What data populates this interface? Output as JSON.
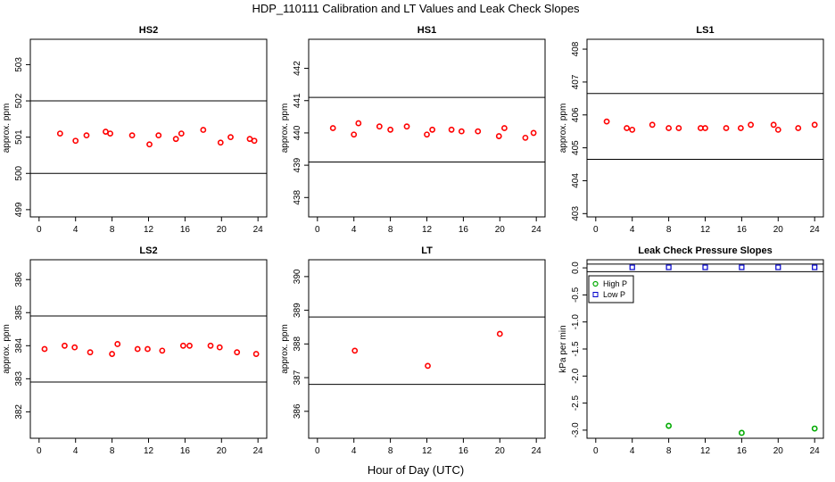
{
  "figure": {
    "title": "HDP_110111  Calibration and LT Values and Leak Check Slopes",
    "xlabel": "Hour of Day (UTC)"
  },
  "chart_data": [
    {
      "type": "scatter",
      "title": "HS2",
      "xlabel": "",
      "ylabel": "approx. ppm",
      "xlim": [
        0,
        24
      ],
      "ylim": [
        498.8,
        503.7
      ],
      "xticks": [
        0,
        4,
        8,
        12,
        16,
        20,
        24
      ],
      "yticks": [
        499,
        500,
        501,
        502,
        503
      ],
      "hlines": [
        500.0,
        502.0
      ],
      "series": [
        {
          "color": "#ff0000",
          "x": [
            2.3,
            4.0,
            5.2,
            7.3,
            7.8,
            10.2,
            12.1,
            13.1,
            15.0,
            15.6,
            18.0,
            19.9,
            21.0,
            23.1,
            23.6
          ],
          "y": [
            501.1,
            500.9,
            501.05,
            501.15,
            501.1,
            501.05,
            500.8,
            501.05,
            500.95,
            501.1,
            501.2,
            500.85,
            501.0,
            500.95,
            500.9
          ]
        }
      ]
    },
    {
      "type": "scatter",
      "title": "HS1",
      "xlabel": "",
      "ylabel": "approx. ppm",
      "xlim": [
        0,
        24
      ],
      "ylim": [
        437.4,
        442.9
      ],
      "xticks": [
        0,
        4,
        8,
        12,
        16,
        20,
        24
      ],
      "yticks": [
        438,
        439,
        440,
        441,
        442
      ],
      "hlines": [
        439.1,
        441.1
      ],
      "series": [
        {
          "color": "#ff0000",
          "x": [
            1.7,
            4.0,
            4.5,
            6.8,
            8.0,
            9.8,
            12.0,
            12.6,
            14.7,
            15.8,
            17.6,
            19.9,
            20.5,
            22.8,
            23.7
          ],
          "y": [
            440.15,
            439.95,
            440.3,
            440.2,
            440.1,
            440.2,
            439.95,
            440.1,
            440.1,
            440.05,
            440.05,
            439.9,
            440.15,
            439.85,
            440.0
          ]
        }
      ]
    },
    {
      "type": "scatter",
      "title": "LS1",
      "xlabel": "",
      "ylabel": "approx. ppm",
      "xlim": [
        0,
        24
      ],
      "ylim": [
        402.9,
        408.3
      ],
      "xticks": [
        0,
        4,
        8,
        12,
        16,
        20,
        24
      ],
      "yticks": [
        403,
        404,
        405,
        406,
        407,
        408
      ],
      "hlines": [
        404.65,
        406.65
      ],
      "series": [
        {
          "color": "#ff0000",
          "x": [
            1.2,
            3.4,
            4.0,
            6.2,
            8.0,
            9.1,
            11.5,
            12.0,
            14.3,
            15.9,
            17.0,
            19.5,
            20.0,
            22.2,
            24.0
          ],
          "y": [
            405.8,
            405.6,
            405.55,
            405.7,
            405.6,
            405.6,
            405.6,
            405.6,
            405.6,
            405.6,
            405.7,
            405.7,
            405.55,
            405.6,
            405.7
          ]
        }
      ]
    },
    {
      "type": "scatter",
      "title": "LS2",
      "xlabel": "",
      "ylabel": "approx. ppm",
      "xlim": [
        0,
        24
      ],
      "ylim": [
        381.2,
        386.6
      ],
      "xticks": [
        0,
        4,
        8,
        12,
        16,
        20,
        24
      ],
      "yticks": [
        382,
        383,
        384,
        385,
        386
      ],
      "hlines": [
        382.9,
        384.9
      ],
      "series": [
        {
          "color": "#ff0000",
          "x": [
            0.6,
            2.8,
            3.9,
            5.6,
            8.0,
            8.6,
            10.8,
            11.9,
            13.5,
            15.8,
            16.5,
            18.8,
            19.8,
            21.7,
            23.8
          ],
          "y": [
            383.9,
            384.0,
            383.95,
            383.8,
            383.75,
            384.05,
            383.9,
            383.9,
            383.85,
            384.0,
            384.0,
            384.0,
            383.95,
            383.8,
            383.75
          ]
        }
      ]
    },
    {
      "type": "scatter",
      "title": "LT",
      "xlabel": "",
      "ylabel": "approx. ppm",
      "xlim": [
        0,
        24
      ],
      "ylim": [
        385.2,
        390.5
      ],
      "xticks": [
        0,
        4,
        8,
        12,
        16,
        20,
        24
      ],
      "yticks": [
        386,
        387,
        388,
        389,
        390
      ],
      "hlines": [
        386.8,
        388.8
      ],
      "series": [
        {
          "color": "#ff0000",
          "x": [
            4.1,
            12.1,
            20.0
          ],
          "y": [
            387.8,
            387.35,
            388.3
          ]
        }
      ]
    },
    {
      "type": "scatter",
      "title": "Leak Check Pressure Slopes",
      "xlabel": "",
      "ylabel": "kPa per min",
      "xlim": [
        0,
        24
      ],
      "ylim": [
        -3.15,
        0.15
      ],
      "xticks": [
        0,
        4,
        8,
        12,
        16,
        20,
        24
      ],
      "yticks": [
        0.0,
        -0.5,
        -1.0,
        -1.5,
        -2.0,
        -2.5,
        -3.0
      ],
      "ytick_labels": [
        "0.0",
        "-0.5",
        "-1.0",
        "-1.5",
        "-2.0",
        "-2.5",
        "-3.0"
      ],
      "hlines": [
        0.07,
        -0.07
      ],
      "legend": "top-left",
      "series": [
        {
          "name": "High P",
          "color": "#00aa00",
          "marker": "circle",
          "x": [
            8.0,
            16.0,
            24.0
          ],
          "y": [
            -2.92,
            -3.05,
            -2.97
          ]
        },
        {
          "name": "Low P",
          "color": "#0000cc",
          "marker": "square",
          "x": [
            4.0,
            8.0,
            12.0,
            16.0,
            20.0,
            24.0
          ],
          "y": [
            0.01,
            0.01,
            0.01,
            0.01,
            0.01,
            0.01
          ]
        }
      ]
    }
  ]
}
